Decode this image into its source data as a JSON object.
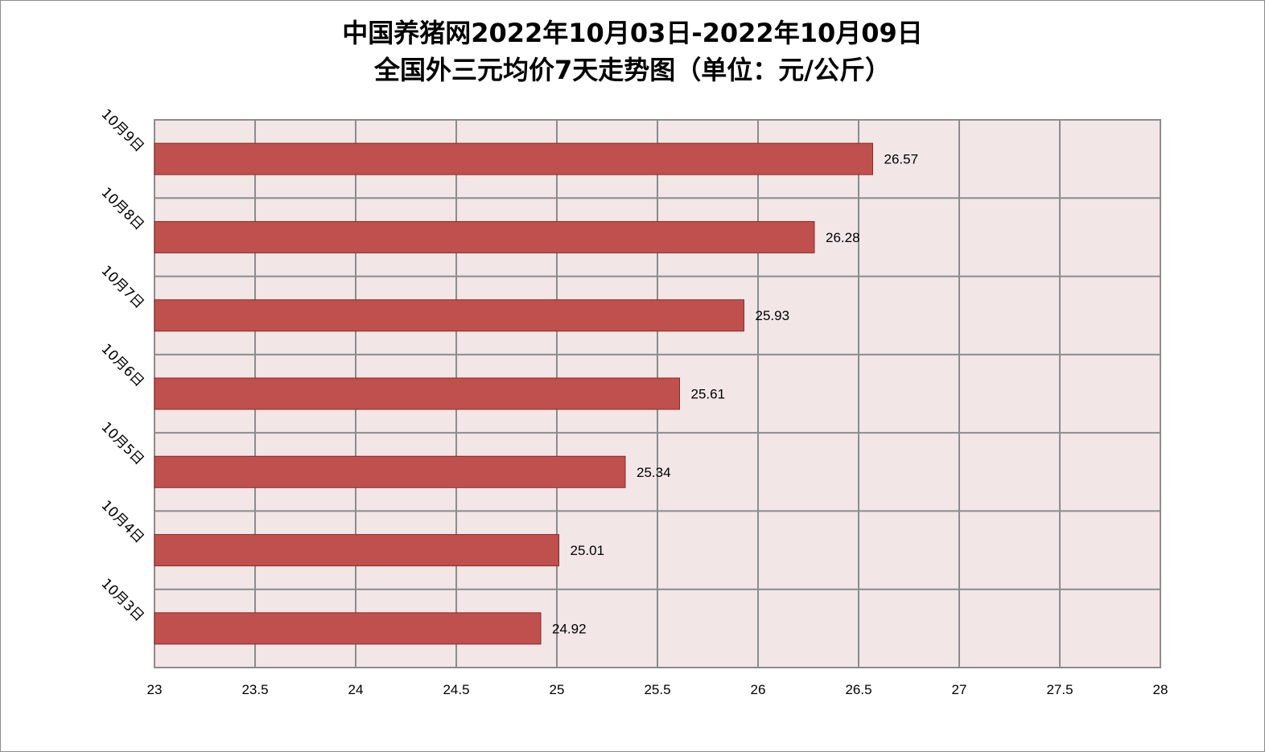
{
  "chart_data": {
    "type": "bar",
    "orientation": "horizontal",
    "title_line1": "中国养猪网2022年10月03日-2022年10月09日",
    "title_line2": "全国外三元均价7天走势图（单位：元/公斤）",
    "categories": [
      "10月3日",
      "10月4日",
      "10月5日",
      "10月6日",
      "10月7日",
      "10月8日",
      "10月9日"
    ],
    "values": [
      24.92,
      25.01,
      25.34,
      25.61,
      25.93,
      26.28,
      26.57
    ],
    "value_labels": [
      "24.92",
      "25.01",
      "25.34",
      "25.61",
      "25.93",
      "26.28",
      "26.57"
    ],
    "xlim": [
      23,
      28
    ],
    "x_ticks": [
      "23",
      "23.5",
      "24",
      "24.5",
      "25",
      "25.5",
      "26",
      "26.5",
      "27",
      "27.5",
      "28"
    ],
    "grid": true,
    "legend": "none",
    "colors": {
      "bar": "#c0504d",
      "bar_border": "#8b2b28",
      "plot_bg": "#f2e6e6",
      "grid": "#8c8c8c"
    }
  }
}
